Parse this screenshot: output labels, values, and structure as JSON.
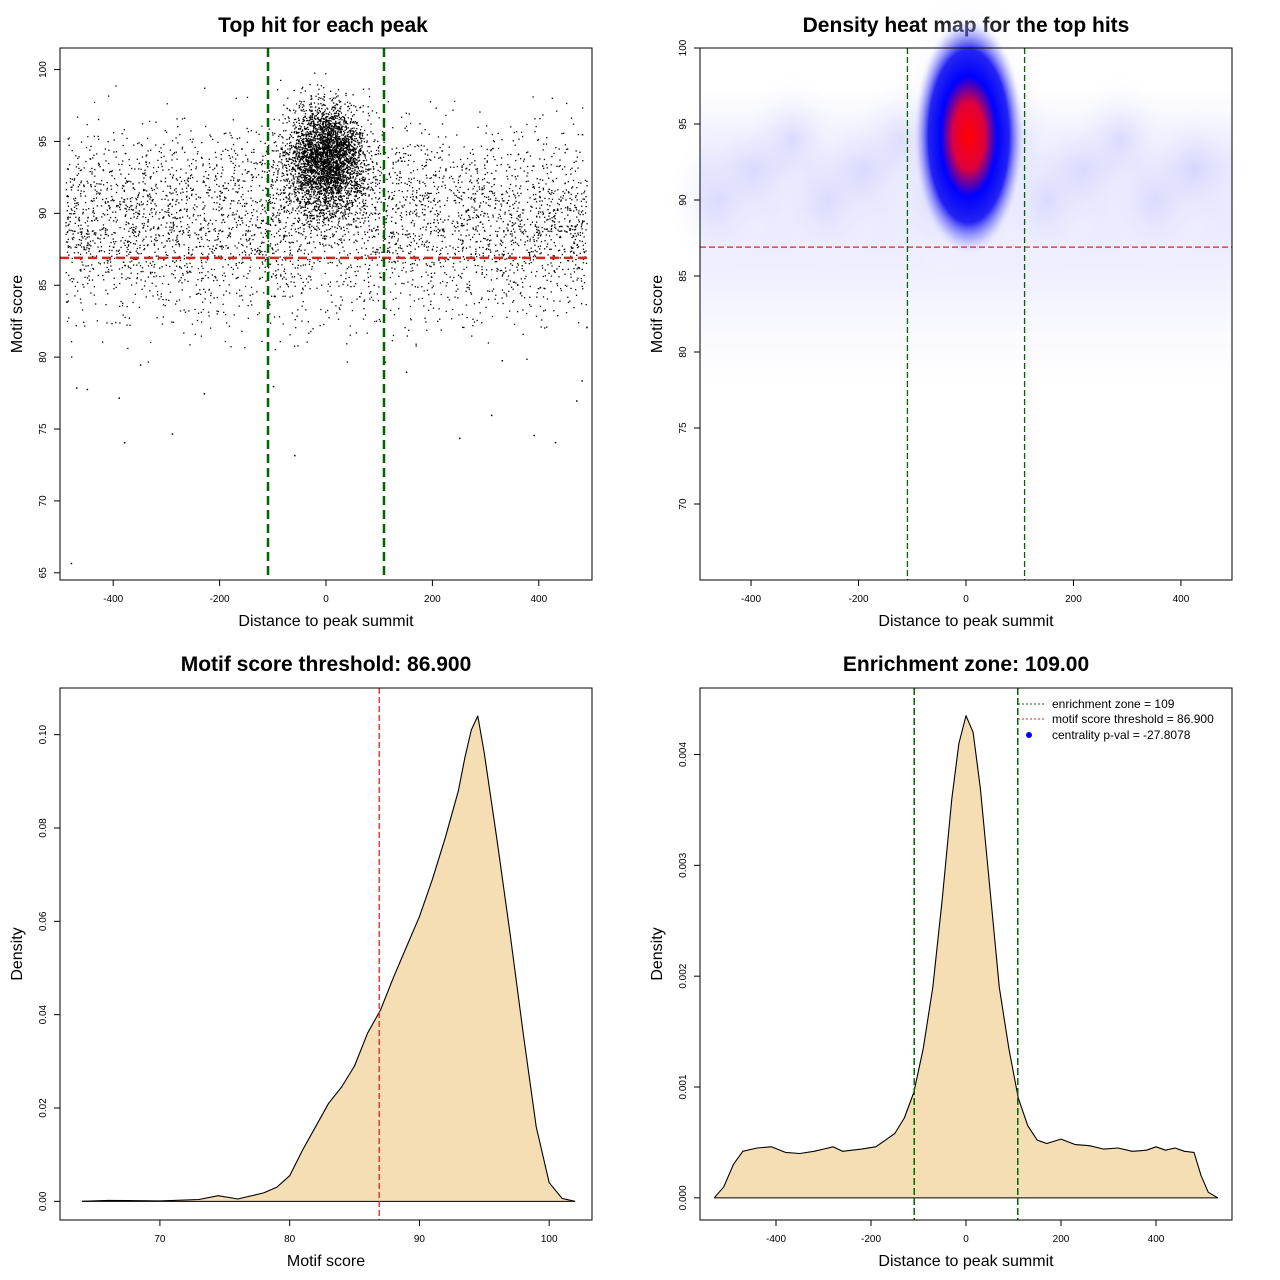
{
  "colors": {
    "threshold": "#dd2222",
    "zone": "#006400",
    "fill": "#f5deb3",
    "point": "#000000",
    "heat_low": "#ffffff",
    "heat_mid": "#0000ff",
    "heat_high": "#ff0000"
  },
  "chart_data": [
    {
      "type": "scatter",
      "title": "Top hit for each peak",
      "xlabel": "Distance to peak summit",
      "ylabel": "Motif score",
      "xlim": [
        -500,
        500
      ],
      "ylim": [
        64.5,
        101.5
      ],
      "xticks": [
        -400,
        -200,
        0,
        200,
        400
      ],
      "xtick_labels": [
        "-400",
        "-200",
        "0",
        "200",
        "400"
      ],
      "yticks": [
        65,
        70,
        75,
        80,
        85,
        90,
        95,
        100
      ],
      "ytick_labels": [
        "65",
        "70",
        "75",
        "80",
        "85",
        "90",
        "95",
        "100"
      ],
      "hline": 86.9,
      "vlines": [
        -109,
        109
      ],
      "sample_points": [
        [
          -480,
          65.7
        ],
        [
          -470,
          77.9
        ],
        [
          -450,
          77.8
        ],
        [
          -390,
          77.2
        ],
        [
          -380,
          74.1
        ],
        [
          -290,
          74.7
        ],
        [
          -230,
          77.5
        ],
        [
          -60,
          73.2
        ],
        [
          250,
          74.4
        ],
        [
          310,
          76.0
        ],
        [
          390,
          74.6
        ],
        [
          430,
          74.1
        ],
        [
          470,
          77.0
        ],
        [
          480,
          78.4
        ],
        [
          -100,
          78.0
        ],
        [
          150,
          79.0
        ],
        [
          -350,
          79.5
        ],
        [
          330,
          79.8
        ]
      ]
    },
    {
      "type": "heatmap",
      "title": "Density heat map for the top hits",
      "xlabel": "Distance to peak summit",
      "ylabel": "Motif score",
      "xlim": [
        -495,
        495
      ],
      "ylim": [
        65,
        100
      ],
      "xticks": [
        -400,
        -200,
        0,
        200,
        400
      ],
      "xtick_labels": [
        "-400",
        "-200",
        "0",
        "200",
        "400"
      ],
      "yticks": [
        70,
        75,
        80,
        85,
        90,
        95,
        100
      ],
      "ytick_labels": [
        "70",
        "75",
        "80",
        "85",
        "90",
        "95",
        "100"
      ],
      "hline": 86.9,
      "vlines": [
        -109,
        109
      ],
      "density_peak": {
        "x": 5,
        "y": 94.2
      }
    },
    {
      "type": "area",
      "title": "Motif score threshold: 86.900",
      "xlabel": "Motif score",
      "ylabel": "Density",
      "xlim": [
        62.3,
        103.3
      ],
      "ylim": [
        -0.004,
        0.11
      ],
      "xticks": [
        70,
        80,
        90,
        100
      ],
      "xtick_labels": [
        "70",
        "80",
        "90",
        "100"
      ],
      "yticks": [
        0.0,
        0.02,
        0.04,
        0.06,
        0.08,
        0.1
      ],
      "ytick_labels": [
        "0.00",
        "0.02",
        "0.04",
        "0.06",
        "0.08",
        "0.10"
      ],
      "vline": 86.9,
      "x": [
        64,
        66,
        70,
        73,
        74.5,
        76,
        78,
        79,
        80,
        81,
        82,
        83,
        84,
        85,
        86,
        87,
        88,
        89,
        90,
        91,
        92,
        93,
        93.5,
        94,
        94.5,
        95,
        96,
        97,
        98,
        99,
        100,
        101,
        102
      ],
      "y": [
        0.0,
        0.0002,
        0.0001,
        0.0004,
        0.0012,
        0.0005,
        0.0018,
        0.003,
        0.0055,
        0.011,
        0.016,
        0.021,
        0.0245,
        0.029,
        0.036,
        0.041,
        0.048,
        0.0545,
        0.061,
        0.069,
        0.078,
        0.088,
        0.095,
        0.101,
        0.104,
        0.096,
        0.077,
        0.057,
        0.036,
        0.016,
        0.004,
        0.0006,
        0.0
      ]
    },
    {
      "type": "area",
      "title": "Enrichment zone: 109.00",
      "xlabel": "Distance to peak summit",
      "ylabel": "Density",
      "xlim": [
        -560,
        560
      ],
      "ylim": [
        -0.0002,
        0.0046
      ],
      "xticks": [
        -400,
        -200,
        0,
        200,
        400
      ],
      "xtick_labels": [
        "-400",
        "-200",
        "0",
        "200",
        "400"
      ],
      "yticks": [
        0.0,
        0.001,
        0.002,
        0.003,
        0.004
      ],
      "ytick_labels": [
        "0.000",
        "0.001",
        "0.002",
        "0.003",
        "0.004"
      ],
      "vlines": [
        -109,
        109
      ],
      "x": [
        -530,
        -510,
        -490,
        -470,
        -440,
        -410,
        -380,
        -350,
        -320,
        -300,
        -280,
        -260,
        -220,
        -190,
        -170,
        -150,
        -130,
        -110,
        -90,
        -70,
        -50,
        -30,
        -15,
        0,
        15,
        30,
        50,
        70,
        90,
        110,
        130,
        150,
        170,
        200,
        230,
        260,
        290,
        320,
        350,
        380,
        400,
        420,
        440,
        460,
        480,
        495,
        510,
        530
      ],
      "y": [
        0.0,
        0.0001,
        0.0003,
        0.00042,
        0.00045,
        0.00046,
        0.00041,
        0.0004,
        0.00042,
        0.00044,
        0.00046,
        0.00042,
        0.00044,
        0.00046,
        0.00052,
        0.00058,
        0.00072,
        0.00095,
        0.00135,
        0.0019,
        0.0027,
        0.0036,
        0.0041,
        0.00435,
        0.0042,
        0.0037,
        0.0028,
        0.0019,
        0.00135,
        0.0009,
        0.00065,
        0.00052,
        0.00049,
        0.00053,
        0.00048,
        0.00047,
        0.00044,
        0.00045,
        0.00042,
        0.00043,
        0.00046,
        0.00043,
        0.00045,
        0.00042,
        0.00041,
        0.0002,
        5e-05,
        0.0
      ],
      "legend": [
        {
          "label": "enrichment zone = 109",
          "kind": "line",
          "color": "#006400"
        },
        {
          "label": "motif score threshold = 86.900",
          "kind": "line",
          "color": "#dd2222"
        },
        {
          "label": "centrality p-val = -27.8078",
          "kind": "point",
          "color": "#0000ff"
        }
      ]
    }
  ]
}
